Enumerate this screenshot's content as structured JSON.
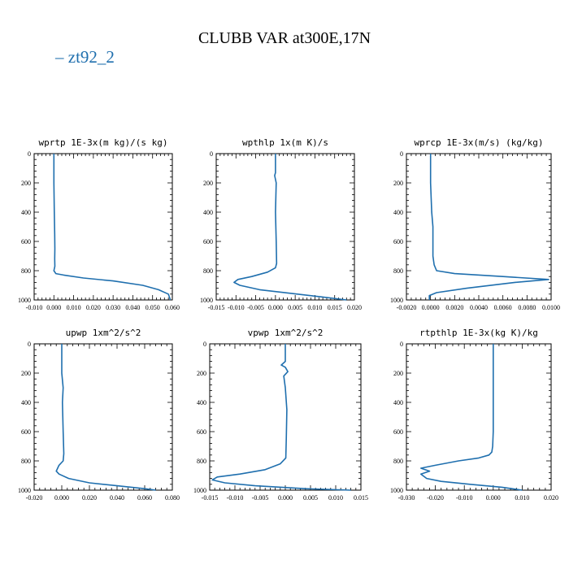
{
  "title": "CLUBB VAR at300E,17N",
  "legend": {
    "line_label": "zt92_2",
    "color": "#1f6fae"
  },
  "chart_data": [
    {
      "type": "line",
      "title": "wprtp  1E-3x(m kg)/(s kg)",
      "xlim": [
        -0.01,
        0.06
      ],
      "ylim": [
        1000,
        0
      ],
      "xticks": [
        "-0.010",
        "0.000",
        "0.010",
        "0.020",
        "0.030",
        "0.040",
        "0.050",
        "0.060"
      ],
      "yticks": [
        "0",
        "200",
        "400",
        "600",
        "800",
        "1000"
      ],
      "series": [
        {
          "x": [
            0.0,
            0.0,
            0.0002,
            0.0004,
            0.0005,
            0.0004,
            0.0005,
            0.0,
            0.001,
            0.005,
            0.015,
            0.03,
            0.045,
            0.053,
            0.058,
            0.059
          ],
          "y": [
            0,
            200,
            400,
            550,
            650,
            720,
            770,
            800,
            820,
            830,
            850,
            870,
            900,
            930,
            960,
            1000
          ]
        }
      ]
    },
    {
      "type": "line",
      "title": "wpthlp  1x(m K)/s",
      "xlim": [
        -0.015,
        0.02
      ],
      "ylim": [
        1000,
        0
      ],
      "xticks": [
        "-0.015",
        "-0.010",
        "-0.005",
        "0.000",
        "0.005",
        "0.010",
        "0.015",
        "0.020"
      ],
      "yticks": [
        "0",
        "200",
        "400",
        "600",
        "800",
        "1000"
      ],
      "series": [
        {
          "x": [
            0.0,
            0.0,
            -0.0002,
            0.0002,
            0.0,
            0.0002,
            0.0003,
            0.0,
            -0.002,
            -0.006,
            -0.0095,
            -0.0105,
            -0.009,
            -0.004,
            0.004,
            0.012,
            0.018
          ],
          "y": [
            0,
            130,
            150,
            200,
            400,
            600,
            750,
            780,
            810,
            840,
            860,
            880,
            900,
            930,
            955,
            980,
            1000
          ]
        }
      ]
    },
    {
      "type": "line",
      "title": "wprcp  1E-3x(m/s) (kg/kg)",
      "xlim": [
        -0.002,
        0.01
      ],
      "ylim": [
        1000,
        0
      ],
      "xticks": [
        "-0.0020",
        "0.0000",
        "0.0020",
        "0.0040",
        "0.0060",
        "0.0080",
        "0.0100"
      ],
      "yticks": [
        "0",
        "200",
        "400",
        "600",
        "800",
        "1000"
      ],
      "series": [
        {
          "x": [
            0.0,
            0.0,
            0.0001,
            0.0002,
            0.0002,
            0.0002,
            0.0003,
            0.0005,
            0.002,
            0.006,
            0.0098,
            0.007,
            0.003,
            0.0005,
            -0.0001,
            -0.0001
          ],
          "y": [
            0,
            200,
            400,
            500,
            600,
            700,
            760,
            800,
            820,
            840,
            860,
            880,
            920,
            950,
            970,
            1000
          ]
        }
      ]
    },
    {
      "type": "line",
      "title": "upwp  1xm^2/s^2",
      "xlim": [
        -0.02,
        0.08
      ],
      "ylim": [
        1000,
        0
      ],
      "xticks": [
        "-0.020",
        "0.000",
        "0.020",
        "0.040",
        "0.060",
        "0.080"
      ],
      "yticks": [
        "0",
        "200",
        "400",
        "600",
        "800",
        "1000"
      ],
      "series": [
        {
          "x": [
            0.0,
            0.0,
            0.001,
            0.0005,
            0.001,
            0.0015,
            0.001,
            -0.002,
            -0.004,
            -0.002,
            0.005,
            0.02,
            0.04,
            0.06,
            0.068
          ],
          "y": [
            0,
            200,
            300,
            400,
            600,
            750,
            800,
            830,
            870,
            890,
            920,
            950,
            970,
            990,
            1000
          ]
        }
      ]
    },
    {
      "type": "line",
      "title": "vpwp  1xm^2/s^2",
      "xlim": [
        -0.015,
        0.015
      ],
      "ylim": [
        1000,
        0
      ],
      "xticks": [
        "-0.015",
        "-0.010",
        "-0.005",
        "0.000",
        "0.005",
        "0.010",
        "0.015"
      ],
      "yticks": [
        "0",
        "200",
        "400",
        "600",
        "800",
        "1000"
      ],
      "series": [
        {
          "x": [
            0.0,
            0.0,
            -0.0008,
            0.0,
            0.0005,
            -0.0003,
            0.0,
            0.0003,
            0.0002,
            0.0001,
            -0.001,
            -0.004,
            -0.009,
            -0.0135,
            -0.0145,
            -0.012,
            -0.006,
            0.004,
            0.013
          ],
          "y": [
            0,
            120,
            145,
            160,
            190,
            220,
            300,
            450,
            650,
            780,
            820,
            860,
            890,
            910,
            930,
            950,
            970,
            990,
            1000
          ]
        }
      ]
    },
    {
      "type": "line",
      "title": "rtpthlp  1E-3x(kg K)/kg",
      "xlim": [
        -0.03,
        0.02
      ],
      "ylim": [
        1000,
        0
      ],
      "xticks": [
        "-0.030",
        "-0.020",
        "-0.010",
        "0.000",
        "0.010",
        "0.020"
      ],
      "yticks": [
        "0",
        "200",
        "400",
        "600",
        "800",
        "1000"
      ],
      "series": [
        {
          "x": [
            0.0,
            0.0,
            -0.0002,
            -0.0005,
            -0.0015,
            -0.005,
            -0.012,
            -0.02,
            -0.025,
            -0.022,
            -0.025,
            -0.023,
            -0.018,
            -0.008,
            0.003,
            0.01
          ],
          "y": [
            0,
            600,
            700,
            740,
            760,
            780,
            800,
            830,
            850,
            870,
            890,
            920,
            940,
            960,
            980,
            1000
          ]
        }
      ]
    }
  ]
}
